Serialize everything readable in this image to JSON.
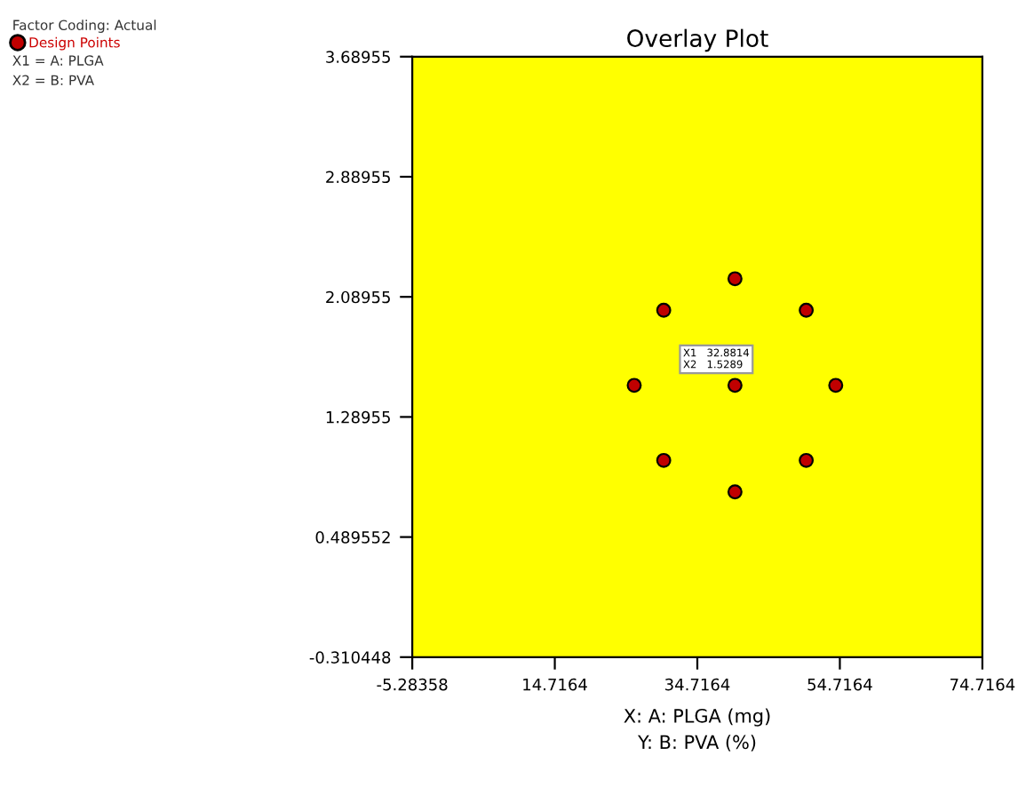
{
  "chart_data": {
    "type": "scatter",
    "title": "Overlay Plot",
    "xlabel": "X: A: PLGA (mg)\nY: B: PVA (%)",
    "x": [
      40,
      30,
      50,
      30,
      50,
      25.86,
      54.14,
      40,
      40
    ],
    "series": [
      {
        "name": "Design Points",
        "color": "#c00000",
        "values": [
          1.5,
          1.0,
          1.0,
          2.0,
          2.0,
          1.5,
          1.5,
          0.79,
          2.21
        ]
      }
    ],
    "marker": "circle",
    "xlim": [
      -5.28358,
      74.7164
    ],
    "xticks": [
      -5.28358,
      14.7164,
      34.7164,
      54.7164,
      74.7164
    ],
    "ylim": [
      -0.310448,
      3.68955
    ],
    "yticks": [
      -0.310448,
      0.489552,
      1.28955,
      2.08955,
      2.88955,
      3.68955
    ],
    "bands": [
      {
        "axis": "y",
        "from": -0.310448,
        "to": 3.68955,
        "color": "#ffff00"
      }
    ],
    "annotations": [
      "Factor Coding: Actual",
      "X1 = A: PLGA",
      "X2 = B: PVA",
      "X1   32.8814\nX2   1.5289"
    ],
    "legend": "top left",
    "grid": false
  }
}
